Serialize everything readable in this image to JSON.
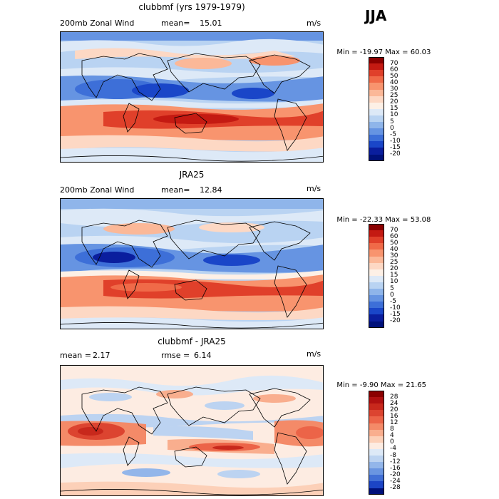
{
  "season": "JJA",
  "panels": [
    {
      "title": "clubbmf (yrs 1979-1979)",
      "left_label": "200mb Zonal Wind",
      "stat_label": "mean=",
      "stat_value": "15.01",
      "units": "m/s",
      "min_label": "Min =",
      "min_value": "-19.97",
      "max_label": "Max =",
      "max_value": "60.03",
      "colorbar_labels": [
        "70",
        "60",
        "50",
        "40",
        "30",
        "25",
        "20",
        "15",
        "10",
        "5",
        "0",
        "-5",
        "-10",
        "-15",
        "-20"
      ],
      "colorbar_colors": [
        "#8b0000",
        "#c41a12",
        "#e0402a",
        "#f06a48",
        "#f8946e",
        "#fbb898",
        "#fdd8c4",
        "#fdf0e6",
        "#dde9f7",
        "#b9d3f2",
        "#8fb5ea",
        "#6694e2",
        "#3d6fd8",
        "#1a46c8",
        "#0a1e9e",
        "#00117a"
      ]
    },
    {
      "title": "JRA25",
      "left_label": "200mb Zonal Wind",
      "stat_label": "mean=",
      "stat_value": "12.84",
      "units": "m/s",
      "min_label": "Min =",
      "min_value": "-22.33",
      "max_label": "Max =",
      "max_value": "53.08",
      "colorbar_labels": [
        "70",
        "60",
        "50",
        "40",
        "30",
        "25",
        "20",
        "15",
        "10",
        "5",
        "0",
        "-5",
        "-10",
        "-15",
        "-20"
      ],
      "colorbar_colors": [
        "#8b0000",
        "#c41a12",
        "#e0402a",
        "#f06a48",
        "#f8946e",
        "#fbb898",
        "#fdd8c4",
        "#fdf0e6",
        "#dde9f7",
        "#b9d3f2",
        "#8fb5ea",
        "#6694e2",
        "#3d6fd8",
        "#1a46c8",
        "#0a1e9e",
        "#00117a"
      ]
    },
    {
      "title": "clubbmf - JRA25",
      "left_label": "mean =",
      "left_value": "2.17",
      "stat_label": "rmse =",
      "stat_value": "6.14",
      "units": "m/s",
      "min_label": "Min =",
      "min_value": "-9.90",
      "max_label": "Max =",
      "max_value": "21.65",
      "colorbar_labels": [
        "28",
        "24",
        "20",
        "16",
        "12",
        "8",
        "4",
        "0",
        "-4",
        "-8",
        "-12",
        "-16",
        "-20",
        "-24",
        "-28"
      ],
      "colorbar_colors": [
        "#8b0000",
        "#b01010",
        "#c8281c",
        "#dc4430",
        "#ec6448",
        "#f48a68",
        "#f9ae8e",
        "#fcd0b8",
        "#fdece2",
        "#dde9f7",
        "#bcd3f1",
        "#93b6ea",
        "#6a95e1",
        "#416fd6",
        "#1c45c6",
        "#00117a"
      ]
    }
  ]
}
